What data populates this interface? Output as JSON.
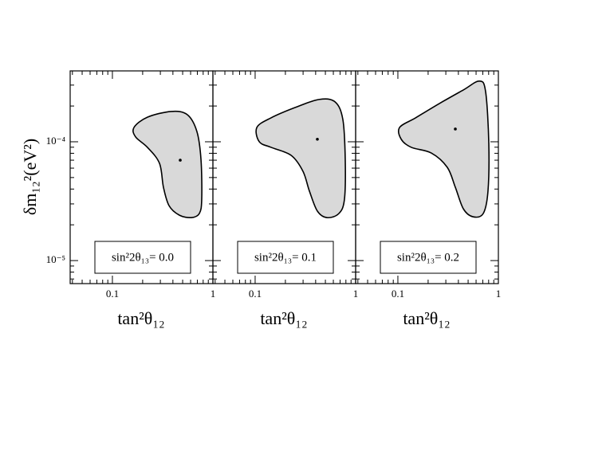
{
  "chart_data": [
    {
      "type": "contour",
      "xscale": "log",
      "yscale": "log",
      "fill": "#d9d9d9",
      "line_color": "#000000",
      "ylabel": "δm₁₂²(eV²)",
      "xlabel": "tan²θ₁₂",
      "annotation": "sin²2θ₁₃= 0.0",
      "xlim": [
        0.038,
        1
      ],
      "ylim": [
        6.4e-06,
        0.000395
      ],
      "xticks": [
        0.1,
        1
      ],
      "xminor": [
        0.04,
        0.05,
        0.06,
        0.07,
        0.08,
        0.09,
        0.2,
        0.3,
        0.4,
        0.5,
        0.6,
        0.7,
        0.8,
        0.9
      ],
      "yticks": [
        {
          "value": 1e-05,
          "label": "10⁻⁵"
        },
        {
          "value": 0.0001,
          "label": "10⁻⁴"
        }
      ],
      "yminor": [
        7e-06,
        8e-06,
        9e-06,
        2e-05,
        3e-05,
        4e-05,
        5e-05,
        6e-05,
        7e-05,
        8e-05,
        9e-05,
        0.0002,
        0.0003
      ],
      "contour": {
        "x": [
          0.164,
          0.223,
          0.386,
          0.557,
          0.693,
          0.761,
          0.774,
          0.733,
          0.611,
          0.464,
          0.366,
          0.322,
          0.294,
          0.223,
          0.17
        ],
        "y": [
          0.000132,
          0.000161,
          0.00018,
          0.000169,
          0.000122,
          7.1e-05,
          3.29e-05,
          2.49e-05,
          2.3e-05,
          2.41e-05,
          2.9e-05,
          4.14e-05,
          6.59e-05,
          8.98e-05,
          0.00011
        ]
      },
      "best_fit": {
        "x": 0.473,
        "y": 7e-05
      }
    },
    {
      "type": "contour",
      "xscale": "log",
      "yscale": "log",
      "fill": "#d9d9d9",
      "line_color": "#000000",
      "xlabel": "tan²θ₁₂",
      "annotation": "sin²2θ₁₃= 0.1",
      "xlim": [
        0.038,
        1
      ],
      "ylim": [
        6.4e-06,
        0.000395
      ],
      "xticks": [
        0.1,
        1
      ],
      "xminor": [
        0.04,
        0.05,
        0.06,
        0.07,
        0.08,
        0.09,
        0.2,
        0.3,
        0.4,
        0.5,
        0.6,
        0.7,
        0.8,
        0.9
      ],
      "contour": {
        "x": [
          0.104,
          0.144,
          0.249,
          0.431,
          0.622,
          0.746,
          0.788,
          0.774,
          0.681,
          0.518,
          0.416,
          0.347,
          0.299,
          0.228,
          0.144,
          0.11
        ],
        "y": [
          0.000132,
          0.000159,
          0.000194,
          0.000227,
          0.000217,
          0.000154,
          7.1e-05,
          3.29e-05,
          2.49e-05,
          2.3e-05,
          2.61e-05,
          3.84e-05,
          5.65e-05,
          7.69e-05,
          8.98e-05,
          0.0001
        ]
      },
      "best_fit": {
        "x": 0.416,
        "y": 0.000105
      }
    },
    {
      "type": "contour",
      "xscale": "log",
      "yscale": "log",
      "fill": "#d9d9d9",
      "line_color": "#000000",
      "xlabel": "tan²θ₁₂",
      "annotation": "sin²2θ₁₃= 0.2",
      "xlim": [
        0.038,
        1
      ],
      "ylim": [
        6.4e-06,
        0.000395
      ],
      "xticks": [
        0.1,
        1
      ],
      "xminor": [
        0.04,
        0.05,
        0.06,
        0.07,
        0.08,
        0.09,
        0.2,
        0.3,
        0.4,
        0.5,
        0.6,
        0.7,
        0.8,
        0.9
      ],
      "contour": {
        "x": [
          0.104,
          0.15,
          0.259,
          0.448,
          0.645,
          0.746,
          0.803,
          0.788,
          0.707,
          0.557,
          0.448,
          0.373,
          0.31,
          0.215,
          0.136,
          0.108
        ],
        "y": [
          0.000132,
          0.000159,
          0.00021,
          0.000273,
          0.000324,
          0.000265,
          9.7e-05,
          3.84e-05,
          2.49e-05,
          2.34e-05,
          2.73e-05,
          4.14e-05,
          6.1e-05,
          8.05e-05,
          8.98e-05,
          0.000105
        ]
      },
      "best_fit": {
        "x": 0.373,
        "y": 0.000128
      }
    }
  ]
}
